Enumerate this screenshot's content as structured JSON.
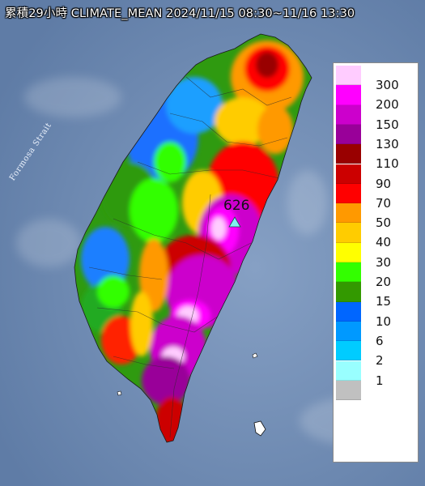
{
  "title": "累積29小時 CLIMATE_MEAN 2024/11/15 08:30~11/16 13:30",
  "strait_label": "Formosa Strait",
  "max_value_label": "626",
  "legend": [
    {
      "label": "300",
      "color": "#ffccff"
    },
    {
      "label": "200",
      "color": "#ff00ff"
    },
    {
      "label": "150",
      "color": "#cc00cc"
    },
    {
      "label": "130",
      "color": "#990099"
    },
    {
      "label": "110",
      "color": "#990000"
    },
    {
      "label": "90",
      "color": "#cc0000"
    },
    {
      "label": "70",
      "color": "#ff0000"
    },
    {
      "label": "50",
      "color": "#ff9900"
    },
    {
      "label": "40",
      "color": "#ffcc00"
    },
    {
      "label": "30",
      "color": "#ffff00"
    },
    {
      "label": "20",
      "color": "#33ff00"
    },
    {
      "label": "15",
      "color": "#339900"
    },
    {
      "label": "10",
      "color": "#0066ff"
    },
    {
      "label": "6",
      "color": "#0099ff"
    },
    {
      "label": "2",
      "color": "#00ccff"
    },
    {
      "label": "1",
      "color": "#99ffff"
    },
    {
      "label": "",
      "color": "#c0c0c0"
    }
  ],
  "colors": {
    "sea": "#6f8ab0",
    "max_marker": "#7ff0f0"
  }
}
